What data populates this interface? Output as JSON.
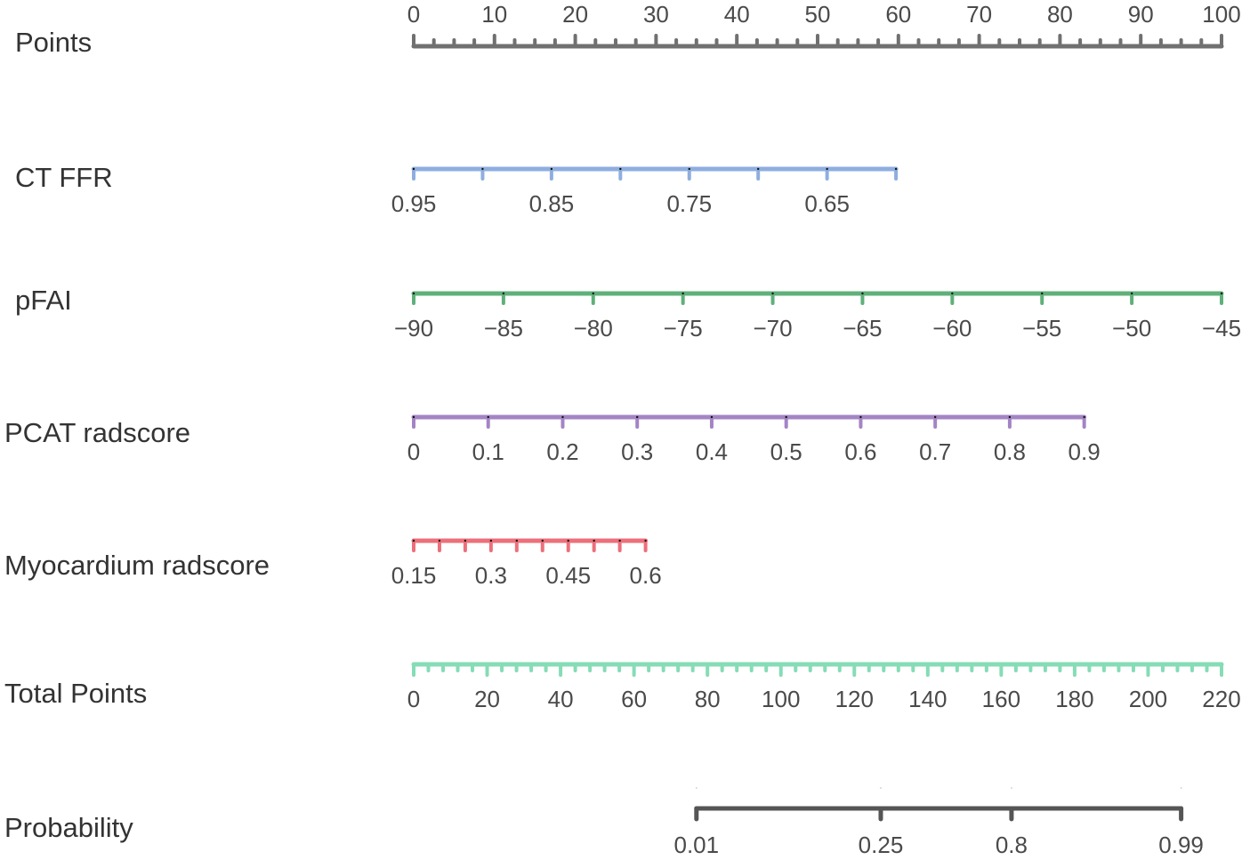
{
  "chart_data": {
    "type": "nomogram",
    "axes": [
      {
        "label": "Points",
        "color": "#707070",
        "ticks_above": true,
        "from": 0,
        "to": 100,
        "points_from": 0,
        "points_to": 100,
        "minor_step": 2.5,
        "major_step": 10,
        "tick_labels": [
          "0",
          "10",
          "20",
          "30",
          "40",
          "50",
          "60",
          "70",
          "80",
          "90",
          "100"
        ],
        "tick_values": [
          0,
          10,
          20,
          30,
          40,
          50,
          60,
          70,
          80,
          90,
          100
        ]
      },
      {
        "label": "CT FFR",
        "color": "#8eaee0",
        "from": 0.95,
        "to": 0.6,
        "points_from": 0,
        "points_to": 59.7,
        "minor_step": 0.05,
        "tick_labels": [
          "0.95",
          "0.85",
          "0.75",
          "0.65"
        ],
        "tick_values": [
          0.95,
          0.85,
          0.75,
          0.65
        ]
      },
      {
        "label": "pFAI",
        "color": "#5fb07a",
        "from": -90,
        "to": -45,
        "points_from": 0,
        "points_to": 100,
        "minor_step": 5,
        "tick_labels": [
          "−90",
          "−85",
          "−80",
          "−75",
          "−70",
          "−65",
          "−60",
          "−55",
          "−50",
          "−45"
        ],
        "tick_values": [
          -90,
          -85,
          -80,
          -75,
          -70,
          -65,
          -60,
          -55,
          -50,
          -45
        ]
      },
      {
        "label": "PCAT radscore",
        "color": "#a484c4",
        "from": 0,
        "to": 0.9,
        "points_from": 0,
        "points_to": 83.0,
        "minor_step": 0.1,
        "tick_labels": [
          "0",
          "0.1",
          "0.2",
          "0.3",
          "0.4",
          "0.5",
          "0.6",
          "0.7",
          "0.8",
          "0.9"
        ],
        "tick_values": [
          0,
          0.1,
          0.2,
          0.3,
          0.4,
          0.5,
          0.6,
          0.7,
          0.8,
          0.9
        ]
      },
      {
        "label": "Myocardium radscore",
        "color": "#ec6f7a",
        "from": 0.15,
        "to": 0.6,
        "points_from": 0,
        "points_to": 28.7,
        "minor_step": 0.05,
        "tick_labels": [
          "0.15",
          "0.3",
          "0.45",
          "0.6"
        ],
        "tick_values": [
          0.15,
          0.3,
          0.45,
          0.6
        ]
      },
      {
        "label": "Total Points",
        "color": "#86dcb6",
        "from": 0,
        "to": 220,
        "points_from": 0,
        "points_to": 100,
        "minor_step": 4,
        "major_step": 20,
        "tick_labels": [
          "0",
          "20",
          "40",
          "60",
          "80",
          "100",
          "120",
          "140",
          "160",
          "180",
          "200",
          "220"
        ],
        "tick_values": [
          0,
          20,
          40,
          60,
          80,
          100,
          120,
          140,
          160,
          180,
          200,
          220
        ]
      },
      {
        "label": "Probability",
        "color": "#555555",
        "tick_labels": [
          "0.01",
          "0.25",
          "0.8",
          "0.99"
        ],
        "tick_values": [
          0.01,
          0.25,
          0.8,
          0.99
        ],
        "total_points_at_ticks": [
          77,
          127.2,
          162.8,
          209
        ]
      }
    ]
  }
}
